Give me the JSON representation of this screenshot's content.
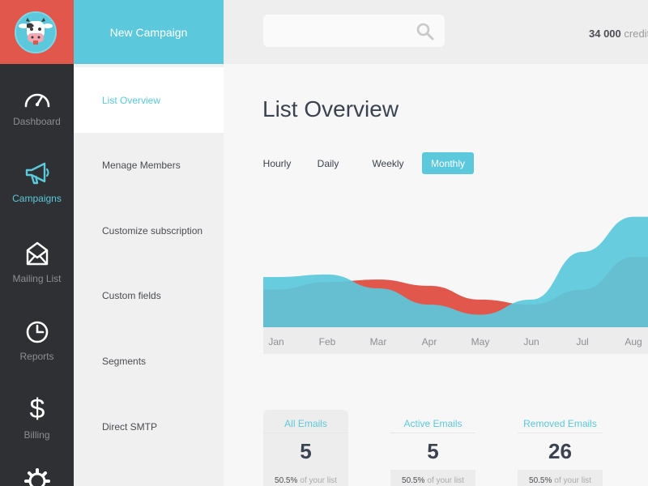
{
  "nav": {
    "items": [
      {
        "label": "Dashboard",
        "icon": "dashboard-gauge-icon"
      },
      {
        "label": "Campaigns",
        "icon": "megaphone-icon"
      },
      {
        "label": "Mailing List",
        "icon": "envelope-icon"
      },
      {
        "label": "Reports",
        "icon": "clock-icon"
      },
      {
        "label": "Billing",
        "icon": "dollar-icon"
      },
      {
        "label": "",
        "icon": "gear-icon"
      }
    ],
    "active": "Campaigns"
  },
  "subnav": {
    "new_campaign": "New Campaign",
    "items": [
      "List Overview",
      "Menage Members",
      "Customize subscription",
      "Custom fields",
      "Segments",
      "Direct SMTP"
    ],
    "active": "List Overview"
  },
  "topbar": {
    "search_value": "",
    "credits_amount": "34 000",
    "credits_word": "credits"
  },
  "main": {
    "title": "List Overview",
    "periods": [
      "Hourly",
      "Daily",
      "Weekly",
      "Monthly"
    ],
    "active_period": "Monthly"
  },
  "chart_data": {
    "type": "area",
    "categories": [
      "Jan",
      "Feb",
      "Mar",
      "Apr",
      "May",
      "Jun",
      "Jul",
      "Aug"
    ],
    "series": [
      {
        "color": "#e2574c",
        "values": [
          0.3,
          0.36,
          0.38,
          0.33,
          0.22,
          0.18,
          0.3,
          0.56
        ]
      },
      {
        "color": "#5bc8dc",
        "values": [
          0.4,
          0.42,
          0.31,
          0.18,
          0.1,
          0.22,
          0.6,
          0.88
        ]
      }
    ],
    "ylim": [
      0,
      1
    ],
    "grid": false,
    "xlabel": "",
    "ylabel": ""
  },
  "stats": [
    {
      "label": "All Emails",
      "value": "5",
      "pct": "50.5%",
      "suffix": "of your list"
    },
    {
      "label": "Active Emails",
      "value": "5",
      "pct": "50.5%",
      "suffix": "of your list"
    },
    {
      "label": "Removed Emails",
      "value": "26",
      "pct": "50.5%",
      "suffix": "of your list"
    }
  ],
  "colors": {
    "accent": "#5bc8dc",
    "brand_red": "#e2574c",
    "nav_bg": "#2f3033"
  }
}
